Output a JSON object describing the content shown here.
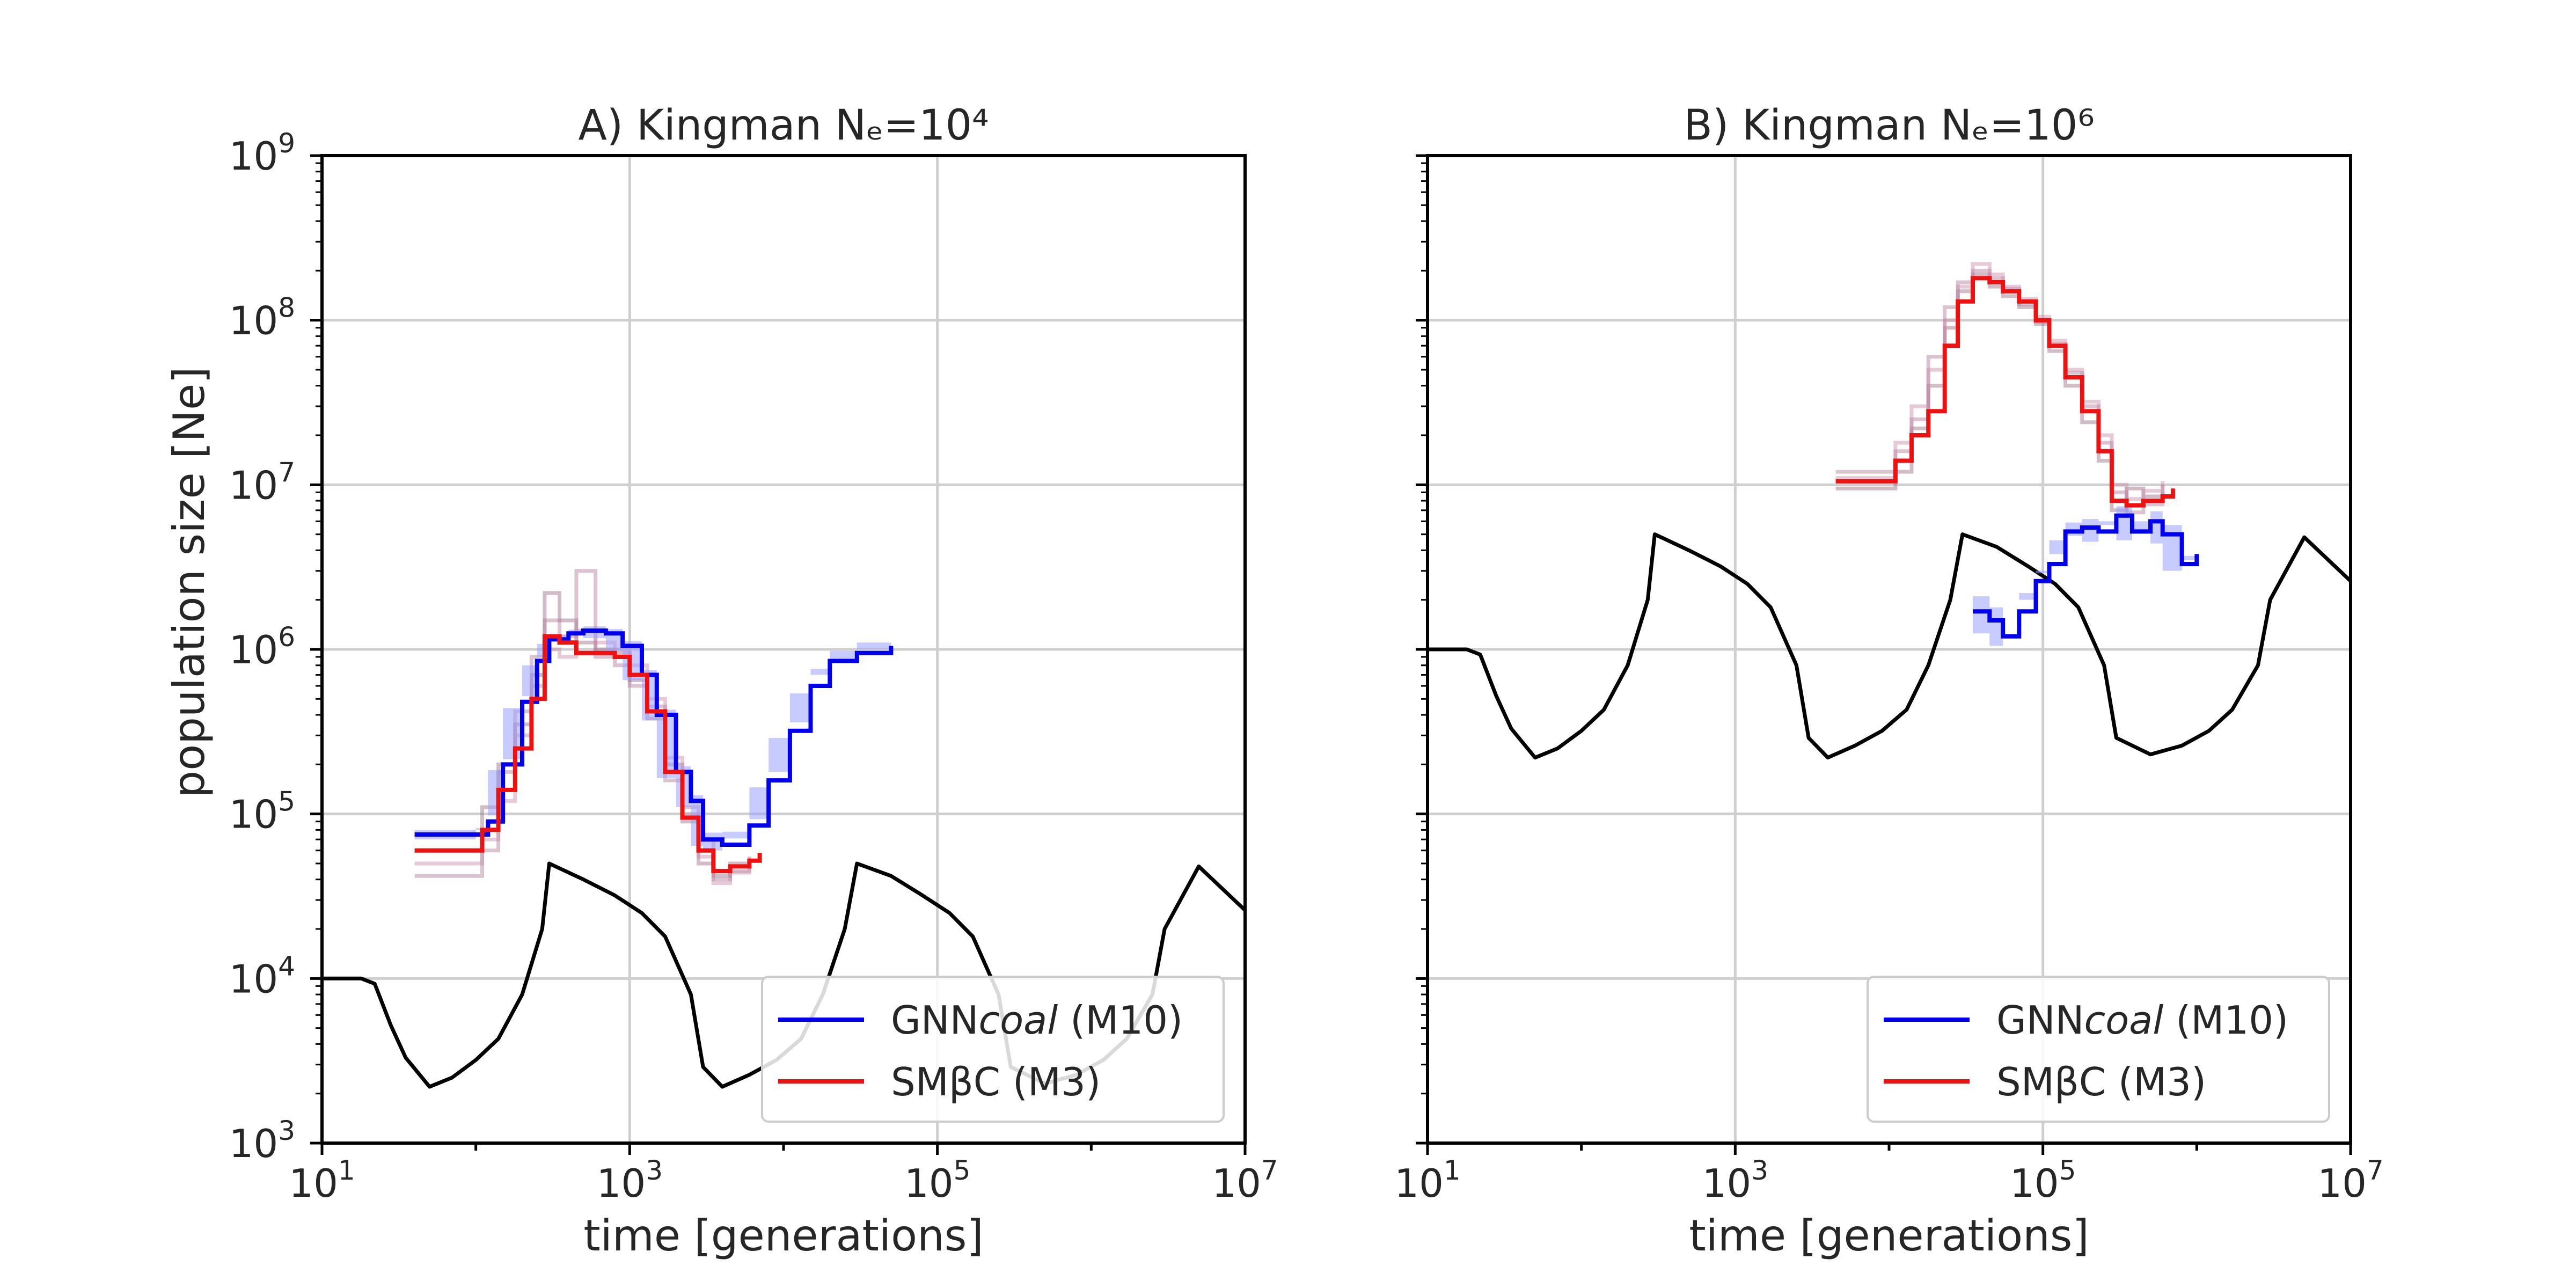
{
  "figure": {
    "ylabel": "population size [Ne]"
  },
  "chart_data": [
    {
      "type": "line",
      "panel": "A",
      "title": "A) Kingman Nₑ=10⁴",
      "xlabel": "time [generations]",
      "ylabel": "population size [Ne]",
      "x_scale": "log",
      "y_scale": "log",
      "xlim": [
        10,
        10000000
      ],
      "ylim": [
        1000,
        1000000000
      ],
      "x_ticks": [
        {
          "base": "10",
          "exp": "1"
        },
        {
          "base": "10",
          "exp": "3"
        },
        {
          "base": "10",
          "exp": "5"
        },
        {
          "base": "10",
          "exp": "7"
        }
      ],
      "y_ticks": [
        {
          "base": "10",
          "exp": "3"
        },
        {
          "base": "10",
          "exp": "4"
        },
        {
          "base": "10",
          "exp": "5"
        },
        {
          "base": "10",
          "exp": "6"
        },
        {
          "base": "10",
          "exp": "7"
        },
        {
          "base": "10",
          "exp": "8"
        },
        {
          "base": "10",
          "exp": "9"
        }
      ],
      "grid": true,
      "legend_position": "lower-right",
      "legend": [
        {
          "prefix": "GNN",
          "italic": "coal",
          "suffix": " (M10)",
          "color": "#0000ee"
        },
        {
          "prefix": "SMβC (M3)",
          "italic": "",
          "suffix": "",
          "color": "#ee1111"
        }
      ],
      "series": [
        {
          "role": "true",
          "color": "#000000",
          "x": [
            10,
            18,
            22,
            28,
            35,
            50,
            70,
            100,
            140,
            200,
            270,
            300,
            500,
            800,
            1200,
            1700,
            2500,
            3000,
            4000,
            6000,
            9000,
            13000,
            18000,
            25000,
            30000,
            50000,
            80000,
            120000,
            170000,
            250000,
            300000,
            500000,
            800000,
            1200000,
            1700000,
            2500000,
            3000000,
            5000000,
            10000000
          ],
          "y": [
            10000,
            10000,
            9300,
            5200,
            3300,
            2200,
            2500,
            3200,
            4300,
            8000,
            20000,
            50000,
            40000,
            32000,
            25000,
            18000,
            8000,
            2900,
            2200,
            2600,
            3200,
            4300,
            8000,
            20000,
            50000,
            42000,
            32000,
            25000,
            18000,
            8000,
            2900,
            2300,
            2600,
            3200,
            4300,
            8000,
            20000,
            48000,
            26000
          ]
        },
        {
          "role": "GNNcoal",
          "name": "GNNcoal (M10)",
          "color": "#0000ee",
          "band_color": "#9aa0ff",
          "x": [
            40,
            100,
            120,
            150,
            200,
            250,
            300,
            400,
            500,
            700,
            900,
            1200,
            1500,
            2000,
            2500,
            3000,
            4000,
            6000,
            8000,
            11000,
            15000,
            20000,
            30000,
            50000
          ],
          "y": [
            75000,
            75000,
            90000,
            200000,
            480000,
            850000,
            1150000,
            1250000,
            1300000,
            1250000,
            1050000,
            700000,
            400000,
            180000,
            120000,
            70000,
            65000,
            85000,
            160000,
            320000,
            600000,
            850000,
            950000,
            1050000
          ],
          "band_lower": [
            70000,
            70000,
            82000,
            185000,
            440000,
            800000,
            1080000,
            1180000,
            1220000,
            1170000,
            980000,
            650000,
            370000,
            165000,
            110000,
            64000,
            60000,
            78000,
            145000,
            290000,
            540000,
            760000,
            870000,
            1000000
          ],
          "band_upper": [
            80000,
            80000,
            98000,
            215000,
            520000,
            900000,
            1220000,
            1320000,
            1380000,
            1330000,
            1120000,
            750000,
            430000,
            195000,
            130000,
            77000,
            71000,
            93000,
            180000,
            360000,
            700000,
            980000,
            1100000,
            1100000
          ]
        },
        {
          "role": "SMBC",
          "name": "SMβC (M3)",
          "color": "#ee1111",
          "x": [
            40,
            90,
            110,
            140,
            180,
            230,
            280,
            350,
            450,
            600,
            800,
            1000,
            1300,
            1700,
            2200,
            2800,
            3500,
            4500,
            6000,
            7000
          ],
          "y": [
            60000,
            60000,
            80000,
            140000,
            250000,
            500000,
            1200000,
            1100000,
            950000,
            950000,
            900000,
            700000,
            420000,
            180000,
            95000,
            60000,
            45000,
            48000,
            52000,
            58000
          ]
        },
        {
          "role": "SMBC-replicate",
          "color": "#9a6a82",
          "x": [
            40,
            90,
            110,
            140,
            180,
            230,
            280,
            350,
            450,
            600,
            800,
            1000,
            1300,
            1700,
            2200,
            2800,
            3500,
            4500,
            6000
          ],
          "y": [
            75000,
            75000,
            110000,
            200000,
            350000,
            700000,
            2200000,
            1500000,
            1100000,
            1000000,
            950000,
            650000,
            380000,
            200000,
            90000,
            50000,
            42000,
            50000,
            55000
          ]
        },
        {
          "role": "SMBC-replicate",
          "color": "#b07a9a",
          "x": [
            40,
            90,
            110,
            140,
            180,
            230,
            280,
            350,
            450,
            600,
            800,
            1000,
            1300,
            1700,
            2200,
            2800,
            3500,
            4500,
            6000
          ],
          "y": [
            42000,
            42000,
            60000,
            180000,
            420000,
            900000,
            1500000,
            1200000,
            3000000,
            900000,
            800000,
            600000,
            450000,
            160000,
            110000,
            70000,
            40000,
            45000,
            50000
          ]
        },
        {
          "role": "SMBC-replicate",
          "color": "#c98aa8",
          "x": [
            40,
            90,
            110,
            140,
            180,
            230,
            280,
            350,
            450,
            600,
            800,
            1000,
            1300,
            1700,
            2200,
            2800,
            3500,
            4500,
            6000
          ],
          "y": [
            50000,
            50000,
            70000,
            120000,
            300000,
            600000,
            1000000,
            900000,
            1300000,
            1100000,
            1000000,
            800000,
            500000,
            220000,
            100000,
            55000,
            38000,
            44000,
            48000
          ]
        }
      ]
    },
    {
      "type": "line",
      "panel": "B",
      "title": "B) Kingman Nₑ=10⁶",
      "xlabel": "time [generations]",
      "x_scale": "log",
      "y_scale": "log",
      "xlim": [
        10,
        10000000
      ],
      "ylim": [
        1000,
        1000000000
      ],
      "x_ticks": [
        {
          "base": "10",
          "exp": "1"
        },
        {
          "base": "10",
          "exp": "3"
        },
        {
          "base": "10",
          "exp": "5"
        },
        {
          "base": "10",
          "exp": "7"
        }
      ],
      "grid": true,
      "legend_position": "lower-right",
      "legend": [
        {
          "prefix": "GNN",
          "italic": "coal",
          "suffix": " (M10)",
          "color": "#0000ee"
        },
        {
          "prefix": "SMβC (M3)",
          "italic": "",
          "suffix": "",
          "color": "#ee1111"
        }
      ],
      "series": [
        {
          "role": "true",
          "color": "#000000",
          "x": [
            10,
            18,
            22,
            28,
            35,
            50,
            70,
            100,
            140,
            200,
            270,
            300,
            500,
            800,
            1200,
            1700,
            2500,
            3000,
            4000,
            6000,
            9000,
            13000,
            18000,
            25000,
            30000,
            50000,
            80000,
            120000,
            170000,
            250000,
            300000,
            500000,
            800000,
            1200000,
            1700000,
            2500000,
            3000000,
            5000000,
            10000000
          ],
          "y": [
            1000000,
            1000000,
            930000,
            520000,
            330000,
            220000,
            250000,
            320000,
            430000,
            800000,
            2000000,
            5000000,
            4000000,
            3200000,
            2500000,
            1800000,
            800000,
            290000,
            220000,
            260000,
            320000,
            430000,
            800000,
            2000000,
            5000000,
            4200000,
            3200000,
            2500000,
            1800000,
            800000,
            290000,
            230000,
            260000,
            320000,
            430000,
            800000,
            2000000,
            4800000,
            2600000
          ]
        },
        {
          "role": "GNNcoal",
          "name": "GNNcoal (M10)",
          "color": "#0000ee",
          "band_color": "#9aa0ff",
          "x": [
            35000,
            45000,
            55000,
            70000,
            90000,
            110000,
            140000,
            180000,
            230000,
            300000,
            380000,
            500000,
            600000,
            800000,
            1000000
          ],
          "y": [
            1700000,
            1500000,
            1200000,
            1700000,
            2600000,
            3300000,
            5200000,
            5500000,
            5200000,
            6500000,
            5200000,
            6000000,
            5000000,
            3300000,
            3800000
          ],
          "band_lower": [
            1400000,
            1250000,
            1050000,
            1450000,
            2200000,
            2900000,
            4600000,
            4900000,
            4500000,
            5700000,
            4600000,
            5300000,
            4400000,
            3000000,
            3500000
          ],
          "band_upper": [
            2100000,
            1800000,
            1450000,
            2000000,
            3000000,
            3800000,
            5900000,
            6200000,
            6000000,
            7400000,
            6000000,
            6900000,
            5700000,
            3700000,
            4200000
          ]
        },
        {
          "role": "SMBC",
          "name": "SMβC (M3)",
          "color": "#ee1111",
          "x": [
            4500,
            9000,
            11000,
            14000,
            18000,
            23000,
            28000,
            35000,
            45000,
            55000,
            70000,
            90000,
            110000,
            140000,
            180000,
            230000,
            280000,
            350000,
            450000,
            600000,
            700000
          ],
          "y": [
            10500000,
            10500000,
            14000000,
            20000000,
            28000000,
            70000000,
            130000000,
            180000000,
            170000000,
            150000000,
            130000000,
            100000000,
            70000000,
            45000000,
            28000000,
            16000000,
            8000000,
            7500000,
            8000000,
            8500000,
            9500000
          ]
        },
        {
          "role": "SMBC-replicate",
          "color": "#9a6a82",
          "x": [
            4500,
            9000,
            11000,
            14000,
            18000,
            23000,
            28000,
            35000,
            45000,
            55000,
            70000,
            90000,
            110000,
            140000,
            180000,
            230000,
            280000,
            350000,
            450000,
            600000
          ],
          "y": [
            9500000,
            9500000,
            12000000,
            22000000,
            40000000,
            90000000,
            150000000,
            190000000,
            160000000,
            140000000,
            120000000,
            95000000,
            65000000,
            40000000,
            24000000,
            14000000,
            7000000,
            9500000,
            8500000,
            10000000
          ]
        },
        {
          "role": "SMBC-replicate",
          "color": "#b07a9a",
          "x": [
            4500,
            9000,
            11000,
            14000,
            18000,
            23000,
            28000,
            35000,
            45000,
            55000,
            70000,
            90000,
            110000,
            140000,
            180000,
            230000,
            280000,
            350000,
            450000,
            600000
          ],
          "y": [
            12000000,
            12000000,
            16000000,
            25000000,
            60000000,
            120000000,
            170000000,
            200000000,
            180000000,
            155000000,
            125000000,
            98000000,
            72000000,
            48000000,
            30000000,
            18000000,
            9000000,
            6800000,
            7600000,
            9000000
          ]
        },
        {
          "role": "SMBC-replicate",
          "color": "#c98aa8",
          "x": [
            4500,
            9000,
            11000,
            14000,
            18000,
            23000,
            28000,
            35000,
            45000,
            55000,
            70000,
            90000,
            110000,
            140000,
            180000,
            230000,
            280000,
            350000,
            450000,
            600000
          ],
          "y": [
            11000000,
            11000000,
            18000000,
            30000000,
            50000000,
            100000000,
            160000000,
            220000000,
            190000000,
            160000000,
            135000000,
            105000000,
            75000000,
            50000000,
            32000000,
            20000000,
            10000000,
            8200000,
            9200000,
            10500000
          ]
        }
      ]
    }
  ]
}
